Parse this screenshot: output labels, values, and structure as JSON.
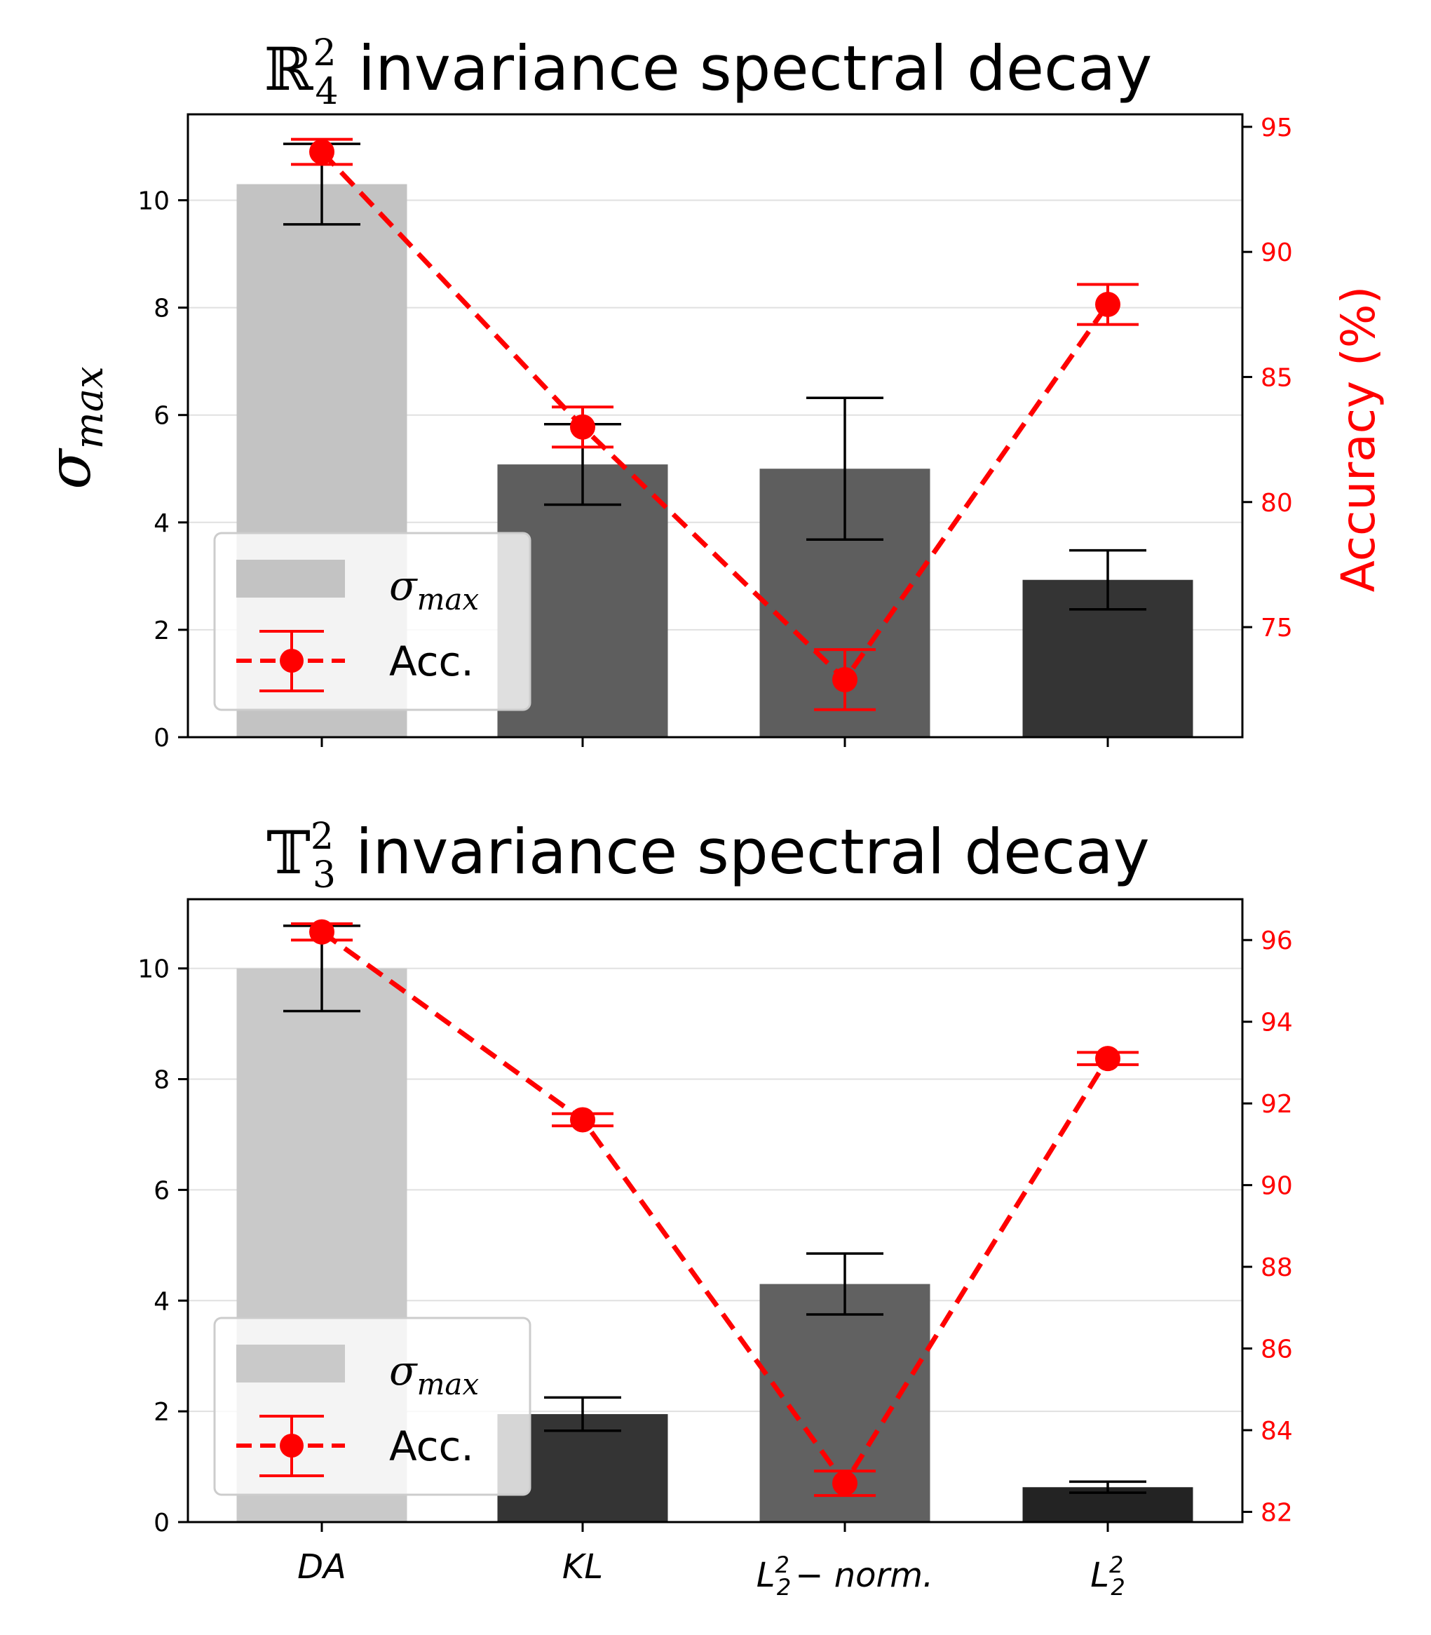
{
  "chart_data": [
    {
      "type": "bar",
      "title_math": "ℝ",
      "title_superscript": "2",
      "title_subscript": "4",
      "title_text": "invariance spectral decay",
      "ylabel_left": "σ",
      "ylabel_left_sub": "max",
      "ylabel_right": "Accuracy (%)",
      "categories": [
        "DA",
        "KL",
        "L2^2-norm.",
        "L2^2"
      ],
      "sigma_max": [
        10.3,
        5.08,
        5.0,
        2.93
      ],
      "sigma_err": [
        0.75,
        0.75,
        1.32,
        0.55
      ],
      "bar_colors": [
        "#c3c3c3",
        "#5e5e5e",
        "#5e5e5e",
        "#343434"
      ],
      "accuracy": [
        94.0,
        83.0,
        72.9,
        87.9
      ],
      "accuracy_err": [
        0.5,
        0.8,
        1.2,
        0.8
      ],
      "ylim_left": [
        0,
        11.6
      ],
      "yticks_left": [
        "0",
        "2",
        "4",
        "6",
        "8",
        "10"
      ],
      "ylim_right": [
        70.6,
        95.5
      ],
      "yticks_right": [
        "75",
        "80",
        "85",
        "90",
        "95"
      ],
      "legend": [
        "σmax",
        "Acc."
      ],
      "legend_position": "lower-left"
    },
    {
      "type": "bar",
      "title_math": "𝕋",
      "title_superscript": "2",
      "title_subscript": "3",
      "title_text": "invariance spectral decay",
      "categories": [
        "DA",
        "KL",
        "L2^2-norm.",
        "L2^2"
      ],
      "sigma_max": [
        10.0,
        1.95,
        4.3,
        0.63
      ],
      "sigma_err": [
        0.77,
        0.3,
        0.55,
        0.1
      ],
      "bar_colors": [
        "#c9c9c9",
        "#343434",
        "#616161",
        "#232323"
      ],
      "accuracy": [
        96.2,
        91.6,
        82.7,
        93.1
      ],
      "accuracy_err": [
        0.2,
        0.15,
        0.3,
        0.15
      ],
      "ylim_left": [
        0,
        11.25
      ],
      "yticks_left": [
        "0",
        "2",
        "4",
        "6",
        "8",
        "10"
      ],
      "ylim_right": [
        81.75,
        97.0
      ],
      "yticks_right": [
        "82",
        "84",
        "86",
        "88",
        "90",
        "92",
        "94",
        "96"
      ],
      "legend": [
        "σmax",
        "Acc."
      ],
      "legend_position": "lower-left"
    }
  ],
  "x_tick_labels": {
    "DA": "DA",
    "KL": "KL",
    "L_norm_base": "L",
    "L_norm_sup": "2",
    "L_norm_sub": "2",
    "L_norm_tail": "− norm.",
    "L_base": "L",
    "L_sup": "2",
    "L_sub": "2"
  },
  "colors": {
    "accent": "#ff0000",
    "axis": "#000000",
    "grid": "#e0e0e0"
  }
}
